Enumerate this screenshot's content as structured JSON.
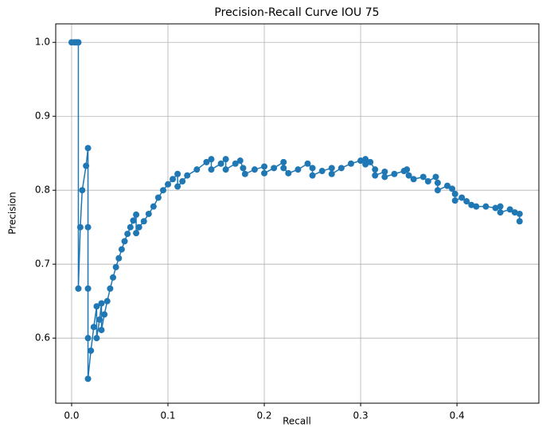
{
  "chart_data": {
    "type": "line",
    "title": "Precision-Recall Curve IOU 75",
    "x_label": "Recall",
    "y_label": "Precision",
    "x": [
      0,
      0.003,
      0.005,
      0.007,
      0.007,
      0.009,
      0.011,
      0.015,
      0.017,
      0.017,
      0.017,
      0.017,
      0.017,
      0.02,
      0.023,
      0.026,
      0.026,
      0.029,
      0.031,
      0.031,
      0.034,
      0.037,
      0.04,
      0.043,
      0.046,
      0.049,
      0.052,
      0.055,
      0.058,
      0.061,
      0.064,
      0.067,
      0.067,
      0.07,
      0.075,
      0.08,
      0.085,
      0.09,
      0.095,
      0.1,
      0.105,
      0.11,
      0.11,
      0.115,
      0.12,
      0.13,
      0.14,
      0.145,
      0.145,
      0.155,
      0.16,
      0.16,
      0.17,
      0.175,
      0.178,
      0.18,
      0.19,
      0.2,
      0.2,
      0.21,
      0.22,
      0.22,
      0.225,
      0.235,
      0.245,
      0.25,
      0.25,
      0.26,
      0.27,
      0.27,
      0.28,
      0.29,
      0.3,
      0.305,
      0.305,
      0.31,
      0.315,
      0.315,
      0.325,
      0.325,
      0.335,
      0.345,
      0.348,
      0.35,
      0.355,
      0.365,
      0.37,
      0.378,
      0.38,
      0.38,
      0.39,
      0.395,
      0.398,
      0.398,
      0.405,
      0.41,
      0.415,
      0.42,
      0.43,
      0.44,
      0.445,
      0.445,
      0.455,
      0.46,
      0.465,
      0.465
    ],
    "series": [
      {
        "color": "#1f77b4",
        "values": [
          1,
          1,
          1,
          1,
          0.667,
          0.75,
          0.8,
          0.833,
          0.857,
          0.75,
          0.667,
          0.6,
          0.545,
          0.583,
          0.615,
          0.643,
          0.6,
          0.625,
          0.647,
          0.611,
          0.632,
          0.65,
          0.667,
          0.682,
          0.696,
          0.708,
          0.72,
          0.731,
          0.741,
          0.75,
          0.759,
          0.767,
          0.742,
          0.75,
          0.758,
          0.768,
          0.778,
          0.79,
          0.8,
          0.808,
          0.815,
          0.822,
          0.805,
          0.812,
          0.82,
          0.828,
          0.838,
          0.842,
          0.828,
          0.836,
          0.842,
          0.828,
          0.836,
          0.84,
          0.83,
          0.822,
          0.828,
          0.832,
          0.823,
          0.83,
          0.838,
          0.83,
          0.823,
          0.828,
          0.836,
          0.83,
          0.82,
          0.826,
          0.83,
          0.822,
          0.83,
          0.836,
          0.84,
          0.842,
          0.835,
          0.838,
          0.828,
          0.82,
          0.825,
          0.818,
          0.822,
          0.826,
          0.828,
          0.82,
          0.815,
          0.818,
          0.812,
          0.818,
          0.81,
          0.8,
          0.806,
          0.802,
          0.795,
          0.786,
          0.79,
          0.785,
          0.78,
          0.778,
          0.778,
          0.776,
          0.778,
          0.77,
          0.774,
          0.77,
          0.768,
          0.758
        ]
      }
    ],
    "xlim": [
      -0.0165,
      0.485
    ],
    "ylim": [
      0.512,
      1.025
    ],
    "xticks": [
      {
        "value": 0,
        "label": "0.0"
      },
      0.1,
      0.2,
      0.3,
      0.4
    ],
    "yticks": [
      0.6,
      0.7,
      0.8,
      0.9,
      {
        "value": 1,
        "label": "1.0"
      }
    ],
    "grid": true
  }
}
